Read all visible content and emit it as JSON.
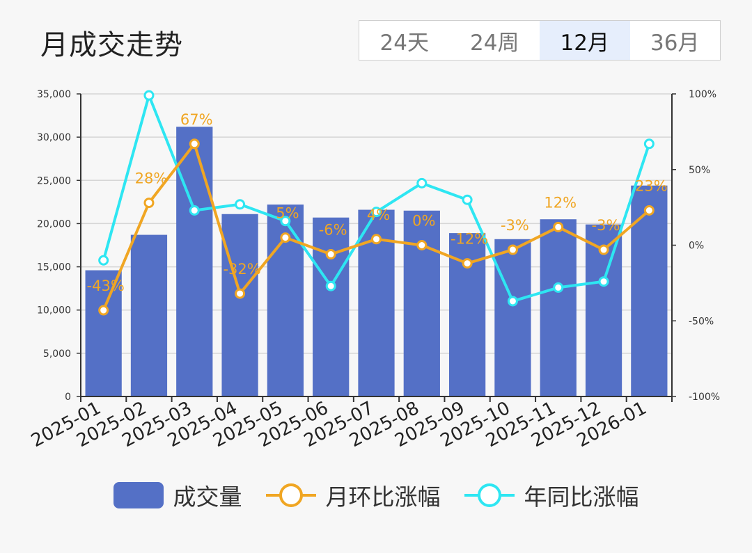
{
  "header": {
    "title": "月成交走势",
    "tabs": [
      {
        "label": "24天",
        "active": false
      },
      {
        "label": "24周",
        "active": false
      },
      {
        "label": "12月",
        "active": true
      },
      {
        "label": "36月",
        "active": false
      }
    ]
  },
  "colors": {
    "bar": "#5470c6",
    "mom": "#f0a623",
    "yoy": "#2ee6f2"
  },
  "chart_data": {
    "type": "bar",
    "categories": [
      "2025-01",
      "2025-02",
      "2025-03",
      "2025-04",
      "2025-05",
      "2025-06",
      "2025-07",
      "2025-08",
      "2025-09",
      "2025-10",
      "2025-11",
      "2025-12",
      "2026-01"
    ],
    "y_left": {
      "min": 0,
      "max": 35000,
      "ticks": [
        "0",
        "5,000",
        "10,000",
        "15,000",
        "20,000",
        "25,000",
        "30,000",
        "35,000"
      ]
    },
    "y_right": {
      "min": -100,
      "max": 100,
      "ticks": [
        "-100%",
        "-50%",
        "0%",
        "50%",
        "100%"
      ]
    },
    "grid": true,
    "legend_position": "bottom",
    "series": [
      {
        "name": "成交量",
        "type": "bar",
        "axis": "left",
        "values": [
          14600,
          18700,
          31200,
          21100,
          22200,
          20700,
          21600,
          21500,
          18900,
          18200,
          20500,
          19900,
          24400
        ]
      },
      {
        "name": "月环比涨幅",
        "type": "line",
        "axis": "right",
        "values": [
          -43,
          28,
          67,
          -32,
          5,
          -6,
          4,
          0,
          -12,
          -3,
          12,
          -3,
          23
        ],
        "labels": [
          "-43%",
          "28%",
          "67%",
          "-32%",
          "5%",
          "-6%",
          "4%",
          "0%",
          "-12%",
          "-3%",
          "12%",
          "-3%",
          "23%"
        ]
      },
      {
        "name": "年同比涨幅",
        "type": "line",
        "axis": "right",
        "values": [
          -10,
          99,
          23,
          27,
          16,
          -27,
          22,
          41,
          30,
          -37,
          -28,
          -24,
          67
        ]
      }
    ]
  }
}
